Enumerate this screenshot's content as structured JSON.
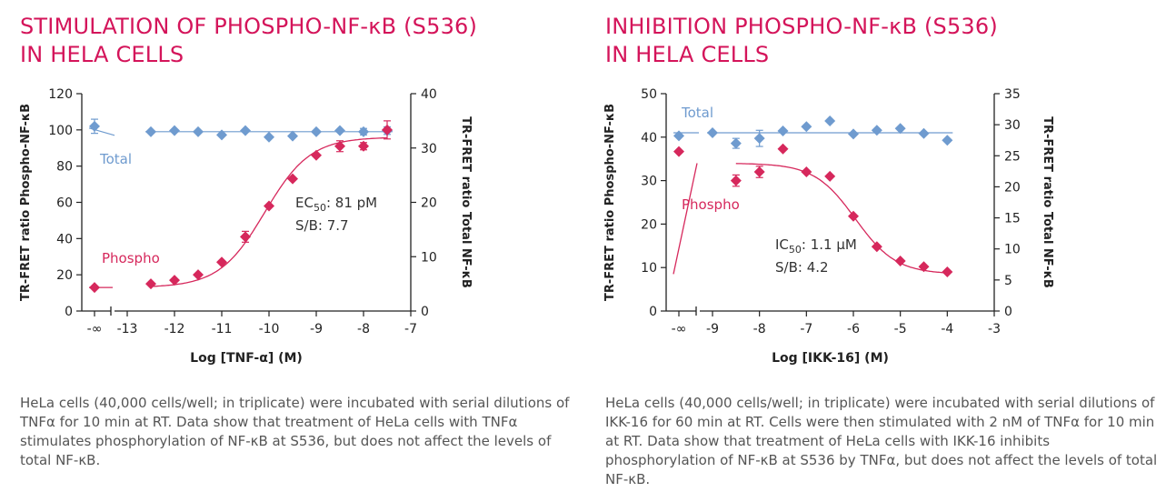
{
  "charts": [
    {
      "title_lines": [
        "STIMULATION OF PHOSPHO-NF-κB (S536)",
        "IN HELA CELLS"
      ],
      "caption": "HeLa cells (40,000 cells/well; in triplicate) were incubated with serial dilutions of TNFα for 10 min at RT. Data show that treatment of HeLa cells with TNFα stimulates phosphorylation of NF-κB at S536, but does not affect the levels of total NF-κB.",
      "xlabel": "Log [TNF-α] (M)",
      "ylabel_left": "TR-FRET ratio Phospho-NF-κB",
      "ylabel_right": "TR-FRET ratio Total NF-κB",
      "annotation_value": ": 81 pM",
      "annotation_sb": "S/B: 7.7",
      "total_label": "Total",
      "phospho_label": "Phospho"
    },
    {
      "title_lines": [
        "INHIBITION PHOSPHO-NF-κB (S536)",
        "IN HELA CELLS"
      ],
      "caption": "HeLa cells (40,000 cells/well; in triplicate) were incubated with serial dilutions of IKK-16 for 60 min at RT. Cells were then stimulated with 2 nM of TNFα for 10 min at RT. Data show that treatment of HeLa cells with IKK-16 inhibits phosphorylation of NF-κB at S536 by TNFα, but does not affect the levels of total NF-κB.",
      "xlabel": "Log [IKK-16] (M)",
      "ylabel_left": "TR-FRET ratio Phospho-NF-κB",
      "ylabel_right": "TR-FRET ratio Total NF-κB",
      "annotation_value": ": 1.1 µM",
      "annotation_sb": "S/B: 4.2",
      "total_label": "Total",
      "phospho_label": "Phospho"
    }
  ],
  "chart_data": [
    {
      "type": "scatter",
      "title": "STIMULATION OF PHOSPHO-NF-κB (S536) IN HELA CELLS",
      "xlabel": "Log [TNF-α] (M)",
      "ylabel": "TR-FRET ratio Phospho-NF-κB",
      "y2label": "TR-FRET ratio Total NF-κB",
      "xlim": [
        -13,
        -7
      ],
      "ylim": [
        0,
        120
      ],
      "y2lim": [
        0,
        40
      ],
      "x_ticks": [
        "-∞",
        "-13",
        "-12",
        "-11",
        "-10",
        "-9",
        "-8",
        "-7"
      ],
      "y_ticks": [
        0,
        20,
        40,
        60,
        80,
        100,
        120
      ],
      "y2_ticks": [
        0,
        10,
        20,
        30,
        40
      ],
      "annotation": "EC50: 81 pM, S/B: 7.7",
      "ec50_log": -10.09,
      "colors": {
        "total": "#6f9bcf",
        "phospho": "#d6285c"
      },
      "series": [
        {
          "name": "Total",
          "axis": "right",
          "x": [
            "-∞",
            -12.5,
            -12,
            -11.5,
            -11,
            -10.5,
            -10,
            -9.5,
            -9,
            -8.5,
            -8,
            -7.5
          ],
          "values": [
            34,
            33,
            33.2,
            33,
            32.4,
            33.2,
            32,
            32.2,
            33,
            33.2,
            33,
            33.2
          ],
          "errors": [
            1.3,
            0,
            0,
            0,
            0,
            0,
            0,
            0,
            0,
            0,
            0.6,
            0.7
          ],
          "fit_level": 33
        },
        {
          "name": "Phospho",
          "axis": "left",
          "x": [
            "-∞",
            -12.5,
            -12,
            -11.5,
            -11,
            -10.5,
            -10,
            -9.5,
            -9,
            -8.5,
            -8,
            -7.5
          ],
          "values": [
            13,
            15,
            17,
            20,
            27,
            41,
            58,
            73,
            86,
            91,
            91,
            100
          ],
          "errors": [
            0,
            0,
            0,
            0,
            0,
            3,
            0,
            0,
            0,
            3,
            2,
            5
          ],
          "fit": {
            "bottom": 13,
            "top": 96,
            "log_ec50": -10.09,
            "hill": 0.9
          }
        }
      ]
    },
    {
      "type": "scatter",
      "title": "INHIBITION PHOSPHO-NF-κB (S536) IN HELA CELLS",
      "xlabel": "Log [IKK-16] (M)",
      "ylabel": "TR-FRET ratio Phospho-NF-κB",
      "y2label": "TR-FRET ratio Total NF-κB",
      "xlim": [
        -9,
        -3
      ],
      "ylim": [
        0,
        50
      ],
      "y2lim": [
        0,
        35
      ],
      "x_ticks": [
        "-∞",
        "-9",
        "-8",
        "-7",
        "-6",
        "-5",
        "-4",
        "-3"
      ],
      "y_ticks": [
        0,
        10,
        20,
        30,
        40,
        50
      ],
      "y2_ticks": [
        0,
        5,
        10,
        15,
        20,
        25,
        30,
        35
      ],
      "annotation": "IC50: 1.1 µM, S/B: 4.2",
      "ec50_log": -5.96,
      "colors": {
        "total": "#6f9bcf",
        "phospho": "#d6285c"
      },
      "series": [
        {
          "name": "Total",
          "axis": "right",
          "x": [
            "-∞",
            -9,
            -8.5,
            -8,
            -7.5,
            -7,
            -6.5,
            -6,
            -5.5,
            -5,
            -4.5,
            -4
          ],
          "values": [
            28.2,
            28.7,
            27,
            27.8,
            29,
            29.7,
            30.6,
            28.5,
            29.1,
            29.4,
            28.6,
            27.5
          ],
          "errors": [
            0,
            0,
            0.8,
            1.3,
            0,
            0,
            0,
            0,
            0,
            0,
            0,
            0
          ],
          "fit_level": 28.7
        },
        {
          "name": "Phospho",
          "axis": "left",
          "x": [
            "-∞",
            -8.5,
            -8,
            -7.5,
            -7,
            -6.5,
            -6,
            -5.5,
            -5,
            -4.5,
            -4
          ],
          "values": [
            36.7,
            30,
            32,
            37.3,
            32,
            31,
            21.8,
            14.8,
            11.5,
            10.2,
            9
          ],
          "errors": [
            0,
            1.3,
            1.3,
            0,
            0,
            0,
            0,
            0,
            0,
            0,
            0
          ],
          "fit": {
            "bottom": 8.5,
            "top": 34,
            "log_ec50": -5.96,
            "hill": 1.0
          }
        }
      ]
    }
  ]
}
